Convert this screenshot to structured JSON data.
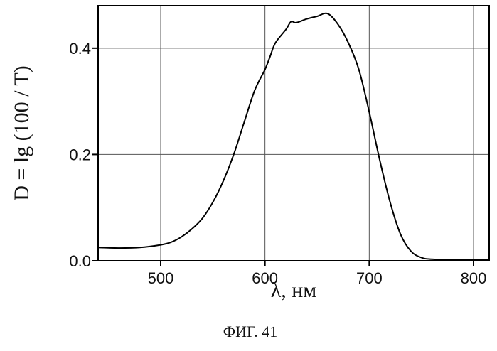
{
  "chart_data": {
    "type": "line",
    "xlabel": "λ, нм",
    "ylabel": "D = lg (100 / T)",
    "caption": "ФИГ. 41",
    "xlim": [
      440,
      815
    ],
    "ylim": [
      0,
      0.48
    ],
    "grid": true,
    "xticks": [
      500,
      600,
      700,
      800
    ],
    "xtick_labels": [
      "500",
      "600",
      "700",
      "800"
    ],
    "yticks": [
      0.0,
      0.2,
      0.4
    ],
    "ytick_labels": [
      "0.0",
      "0.2",
      "0.4"
    ],
    "series": [
      {
        "x": [
          440,
          460,
          480,
          500,
          510,
          520,
          530,
          540,
          550,
          560,
          570,
          580,
          590,
          600,
          605,
          610,
          620,
          625,
          630,
          640,
          650,
          660,
          670,
          680,
          690,
          700,
          710,
          720,
          730,
          740,
          750,
          760,
          780,
          800,
          815
        ],
        "y": [
          0.025,
          0.024,
          0.025,
          0.03,
          0.035,
          0.045,
          0.06,
          0.08,
          0.11,
          0.15,
          0.2,
          0.26,
          0.32,
          0.36,
          0.385,
          0.41,
          0.435,
          0.45,
          0.448,
          0.455,
          0.46,
          0.465,
          0.445,
          0.41,
          0.36,
          0.28,
          0.19,
          0.11,
          0.05,
          0.018,
          0.006,
          0.003,
          0.002,
          0.002,
          0.002
        ]
      }
    ]
  }
}
